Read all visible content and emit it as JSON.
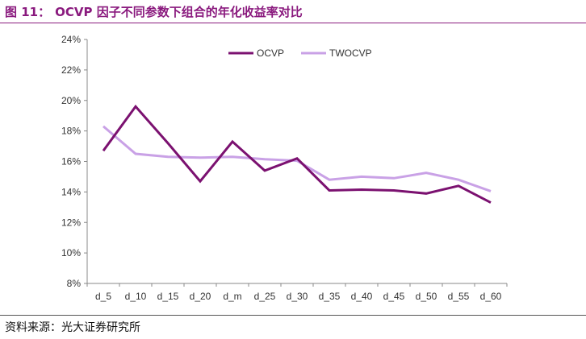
{
  "figure": {
    "label": "图 11：",
    "title": "OCVP 因子不同参数下组合的年化收益率对比"
  },
  "source": "资料来源：光大证券研究所",
  "chart_data": {
    "type": "line",
    "x": [
      "d_5",
      "d_10",
      "d_15",
      "d_20",
      "d_m",
      "d_25",
      "d_30",
      "d_35",
      "d_40",
      "d_45",
      "d_50",
      "d_55",
      "d_60"
    ],
    "series": [
      {
        "name": "OCVP",
        "color": "#7b1170",
        "values": [
          16.7,
          19.6,
          17.2,
          14.7,
          17.3,
          15.4,
          16.2,
          14.1,
          14.15,
          14.1,
          13.9,
          14.4,
          13.3
        ]
      },
      {
        "name": "TWOCVP",
        "color": "#c9a1e6",
        "values": [
          18.3,
          16.5,
          16.3,
          16.25,
          16.3,
          16.15,
          16.05,
          14.8,
          15.0,
          14.9,
          15.25,
          14.8,
          14.05
        ]
      }
    ],
    "y_ticks": [
      "8%",
      "10%",
      "12%",
      "14%",
      "16%",
      "18%",
      "20%",
      "22%",
      "24%"
    ],
    "ylim": [
      8,
      24
    ],
    "y_unit": "%",
    "grid": false,
    "legend": "top-right"
  }
}
